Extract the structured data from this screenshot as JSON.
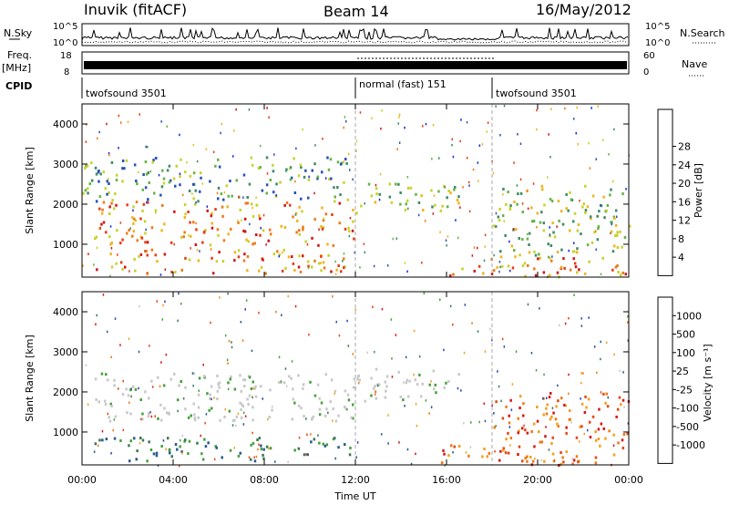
{
  "header": {
    "station": "Inuvik (fitACF)",
    "beam": "Beam 14",
    "date": "16/May/2012"
  },
  "top_panels": {
    "nsky_label": "N.Sky",
    "nsky_ticks": [
      "10^5",
      "10^0"
    ],
    "nsearch_label": "N.Search",
    "nsearch_ticks": [
      "10^5",
      "10^0"
    ],
    "freq_label": "Freq.",
    "freq_unit": "[MHz]",
    "freq_ticks": [
      "18",
      "8"
    ],
    "nave_label": "Nave",
    "nave_ticks": [
      "60",
      "0"
    ],
    "cpid_label": "CPID",
    "cpid_segments": [
      {
        "label": "twofsound 3501",
        "start": 0,
        "end": 12
      },
      {
        "label": "normal (fast) 151",
        "start": 12,
        "end": 18
      },
      {
        "label": "twofsound 3501",
        "start": 18,
        "end": 24
      }
    ]
  },
  "chart_data": [
    {
      "type": "heatmap",
      "title": "",
      "ylabel": "Slant Range [km]",
      "xlabel": "Time UT",
      "x_ticks": [
        "00:00",
        "04:00",
        "08:00",
        "12:00",
        "16:00",
        "20:00",
        "00:00"
      ],
      "y_ticks": [
        "1000",
        "2000",
        "3000",
        "4000"
      ],
      "xlim": [
        0,
        24
      ],
      "ylim": [
        180,
        4500
      ],
      "colorbar": {
        "label": "Power [dB]",
        "ticks": [
          "4",
          "8",
          "12",
          "16",
          "20",
          "24",
          "28"
        ],
        "colors": [
          "#1428dc",
          "#2850b4",
          "#3c8c64",
          "#64b446",
          "#c8d228",
          "#f0b41e",
          "#f07814",
          "#e63c14",
          "#d21414"
        ],
        "range": [
          0,
          30
        ]
      },
      "echo_regions": [
        {
          "t": [
            0.5,
            11.8
          ],
          "r": [
            300,
            900
          ],
          "level": "high"
        },
        {
          "t": [
            0.5,
            12
          ],
          "r": [
            1000,
            2100
          ],
          "level": "high"
        },
        {
          "t": [
            0,
            11.8
          ],
          "r": [
            2100,
            3200
          ],
          "level": "low"
        },
        {
          "t": [
            12,
            16.5
          ],
          "r": [
            1800,
            2600
          ],
          "level": "mid"
        },
        {
          "t": [
            15.5,
            24
          ],
          "r": [
            200,
            700
          ],
          "level": "high"
        },
        {
          "t": [
            18,
            24
          ],
          "r": [
            700,
            2500
          ],
          "level": "mid"
        }
      ]
    },
    {
      "type": "heatmap",
      "title": "",
      "ylabel": "Slant Range [km]",
      "xlabel": "Time UT",
      "x_ticks": [
        "00:00",
        "04:00",
        "08:00",
        "12:00",
        "16:00",
        "20:00",
        "00:00"
      ],
      "y_ticks": [
        "1000",
        "2000",
        "3000",
        "4000"
      ],
      "xlim": [
        0,
        24
      ],
      "ylim": [
        180,
        4500
      ],
      "colorbar": {
        "label": "Velocity [m s⁻¹]",
        "ticks": [
          "1000",
          "500",
          "100",
          "25",
          "-25",
          "-100",
          "-500",
          "-1000"
        ],
        "colors": [
          "#2846b4",
          "#285a8c",
          "#3c7850",
          "#46a03c",
          "#c8c8c8",
          "#f0a01e",
          "#f07814",
          "#e64614",
          "#dc1414"
        ],
        "range": [
          -1000,
          1000
        ]
      },
      "echo_regions": [
        {
          "t": [
            0.5,
            11.8
          ],
          "r": [
            300,
            900
          ],
          "level": "toward"
        },
        {
          "t": [
            0.5,
            12
          ],
          "r": [
            1300,
            2500
          ],
          "level": "ground"
        },
        {
          "t": [
            12,
            16.5
          ],
          "r": [
            1800,
            2600
          ],
          "level": "ground"
        },
        {
          "t": [
            15.5,
            24
          ],
          "r": [
            200,
            700
          ],
          "level": "away"
        },
        {
          "t": [
            18,
            24
          ],
          "r": [
            700,
            2000
          ],
          "level": "away"
        }
      ]
    }
  ]
}
